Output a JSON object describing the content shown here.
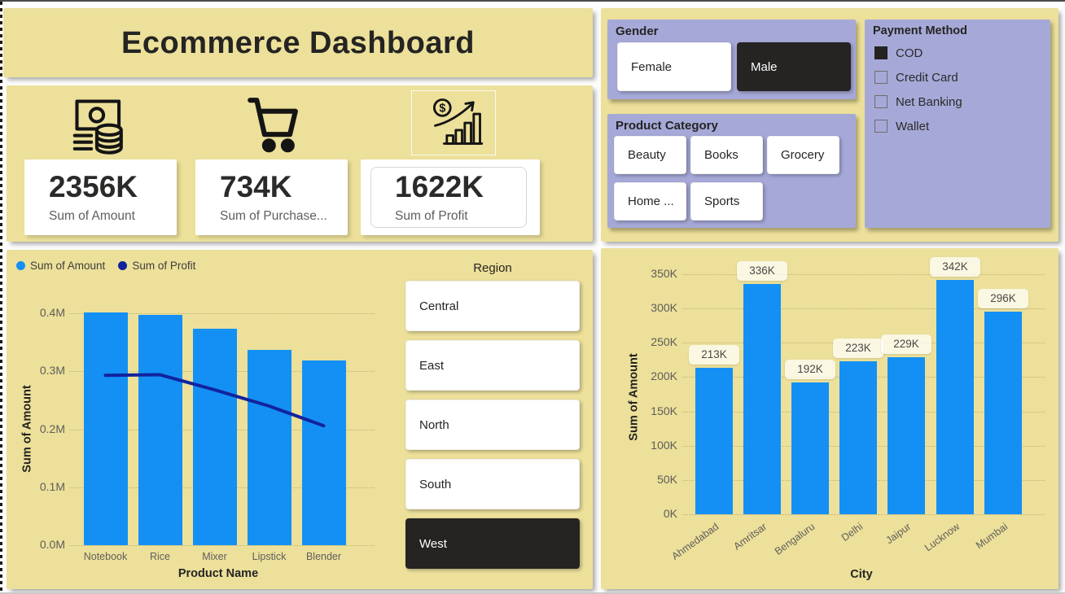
{
  "header": {
    "title": "Ecommerce Dashboard"
  },
  "kpis": [
    {
      "value": "2356K",
      "label": "Sum of Amount",
      "icon": "money-icon"
    },
    {
      "value": "734K",
      "label": "Sum of Purchase...",
      "icon": "cart-icon"
    },
    {
      "value": "1622K",
      "label": "Sum of Profit",
      "icon": "profit-growth-icon"
    }
  ],
  "slicers": {
    "gender": {
      "title": "Gender",
      "options": [
        {
          "label": "Female",
          "selected": false
        },
        {
          "label": "Male",
          "selected": true
        }
      ]
    },
    "product_category": {
      "title": "Product Category",
      "options": [
        {
          "label": "Beauty",
          "selected": false
        },
        {
          "label": "Books",
          "selected": false
        },
        {
          "label": "Grocery",
          "selected": false
        },
        {
          "label": "Home ...",
          "selected": false
        },
        {
          "label": "Sports",
          "selected": false
        }
      ]
    },
    "payment_method": {
      "title": "Payment Method",
      "options": [
        {
          "label": "COD",
          "checked": true
        },
        {
          "label": "Credit Card",
          "checked": false
        },
        {
          "label": "Net Banking",
          "checked": false
        },
        {
          "label": "Wallet",
          "checked": false
        }
      ]
    },
    "region": {
      "title": "Region",
      "options": [
        {
          "label": "Central",
          "selected": false
        },
        {
          "label": "East",
          "selected": false
        },
        {
          "label": "North",
          "selected": false
        },
        {
          "label": "South",
          "selected": false
        },
        {
          "label": "West",
          "selected": true
        }
      ]
    }
  },
  "colors": {
    "panel_yellow": "#ECE09A",
    "slicer_purple": "#A6A9D8",
    "selected_dark": "#252423",
    "bar_blue": "#1490F5",
    "line_navy": "#12239E",
    "text_dark": "#252423",
    "text_gray": "#605E5C"
  },
  "chart_data": [
    {
      "type": "combo-bar-line",
      "title": "",
      "categories": [
        "Notebook",
        "Rice",
        "Mixer",
        "Lipstick",
        "Blender"
      ],
      "series": [
        {
          "name": "Sum of Amount",
          "type": "bar",
          "color": "#1490F5",
          "values": [
            0.402,
            0.397,
            0.373,
            0.337,
            0.318
          ]
        },
        {
          "name": "Sum of Profit",
          "type": "line",
          "color": "#12239E",
          "values": [
            0.293,
            0.294,
            0.268,
            0.24,
            0.206
          ]
        }
      ],
      "xlabel": "Product Name",
      "ylabel": "Sum of Amount",
      "yticks": [
        "0.0M",
        "0.1M",
        "0.2M",
        "0.3M",
        "0.4M"
      ],
      "ylim": [
        0,
        0.4
      ],
      "unit": "M",
      "grid": true,
      "legend_position": "top-left"
    },
    {
      "type": "bar",
      "title": "",
      "categories": [
        "Ahmedabad",
        "Amritsar",
        "Bengaluru",
        "Delhi",
        "Jaipur",
        "Lucknow",
        "Mumbai"
      ],
      "values": [
        213,
        336,
        192,
        223,
        229,
        342,
        296
      ],
      "data_labels": [
        "213K",
        "336K",
        "192K",
        "223K",
        "229K",
        "342K",
        "296K"
      ],
      "xlabel": "City",
      "ylabel": "Sum of Amount",
      "yticks": [
        "0K",
        "50K",
        "100K",
        "150K",
        "200K",
        "250K",
        "300K",
        "350K"
      ],
      "ylim": [
        0,
        350
      ],
      "unit": "K",
      "grid": true,
      "legend_position": "none"
    }
  ]
}
